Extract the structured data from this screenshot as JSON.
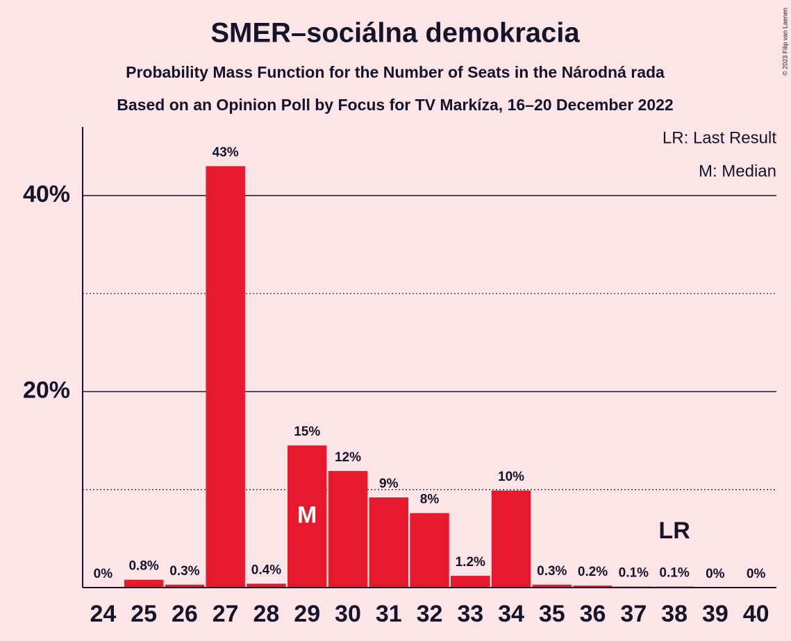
{
  "chart_data": {
    "type": "bar",
    "title": "SMER–sociálna demokracia",
    "subtitle": "Probability Mass Function for the Number of Seats in the Národná rada",
    "subtitle2": "Based on an Opinion Poll by Focus for TV Markíza, 16–20 December 2022",
    "copyright": "© 2023 Filip van Laenen",
    "legend": [
      "LR: Last Result",
      "M: Median"
    ],
    "categories": [
      "24",
      "25",
      "26",
      "27",
      "28",
      "29",
      "30",
      "31",
      "32",
      "33",
      "34",
      "35",
      "36",
      "37",
      "38",
      "39",
      "40"
    ],
    "values": [
      0,
      0.8,
      0.3,
      43,
      0.4,
      14.5,
      11.9,
      9.2,
      7.6,
      1.2,
      9.9,
      0.3,
      0.2,
      0.1,
      0.1,
      0,
      0
    ],
    "value_labels": [
      "0%",
      "0.8%",
      "0.3%",
      "43%",
      "0.4%",
      "15%",
      "12%",
      "9%",
      "8%",
      "1.2%",
      "10%",
      "0.3%",
      "0.2%",
      "0.1%",
      "0.1%",
      "0%",
      "0%"
    ],
    "color": "#e8192c",
    "ylim": [
      0,
      47
    ],
    "yticks": [
      {
        "value": 20,
        "label": "20%"
      },
      {
        "value": 40,
        "label": "40%"
      }
    ],
    "minor_yticks": [
      10,
      30
    ],
    "grid": true,
    "markers": [
      {
        "label": "M",
        "category": "29"
      },
      {
        "label": "LR",
        "category": "38"
      }
    ]
  }
}
